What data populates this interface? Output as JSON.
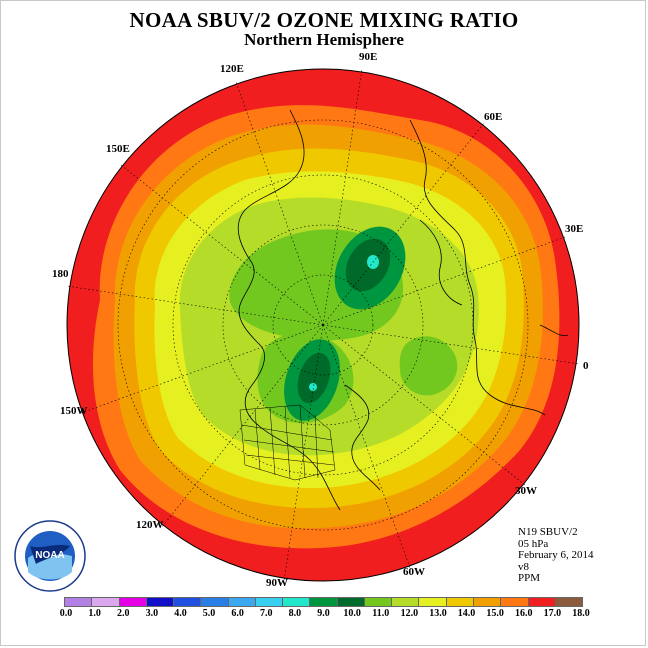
{
  "title": "NOAA SBUV/2 OZONE MIXING RATIO",
  "subtitle": "Northern Hemisphere",
  "longitude_labels": [
    "90E",
    "60E",
    "30E",
    "0",
    "30W",
    "60W",
    "90W",
    "120W",
    "150W",
    "180",
    "150E",
    "120E"
  ],
  "info": {
    "satellite": "N19 SBUV/2",
    "level": "05 hPa",
    "date": "February 6, 2014",
    "version": "v8",
    "units": "PPM"
  },
  "logo": {
    "text": "NOAA",
    "icon": "noaa-logo-icon",
    "ring_text": "NATIONAL OCEANIC AND ATMOSPHERIC ADMINISTRATION · U.S. DEPARTMENT OF COMMERCE"
  },
  "colorbar": {
    "colors": [
      "#b580e6",
      "#dba8f0",
      "#e600e6",
      "#1010c8",
      "#2050e0",
      "#2a7fe6",
      "#3ca8f0",
      "#38d0f0",
      "#20e8c8",
      "#009640",
      "#006a2a",
      "#73c820",
      "#b4dc28",
      "#e6f020",
      "#f0c800",
      "#f0a000",
      "#ff7814",
      "#f01e1e",
      "#8c5a3c"
    ],
    "ticks": [
      "0.0",
      "1.0",
      "2.0",
      "3.0",
      "4.0",
      "5.0",
      "6.0",
      "7.0",
      "8.0",
      "9.0",
      "10.0",
      "11.0",
      "12.0",
      "13.0",
      "14.0",
      "15.0",
      "16.0",
      "17.0",
      "18.0"
    ]
  },
  "field": {
    "outer_color": "#f01e1e",
    "polar_color": "#b4dc28",
    "maxima_colors": [
      "#009640",
      "#006a2a",
      "#20e8c8"
    ]
  }
}
